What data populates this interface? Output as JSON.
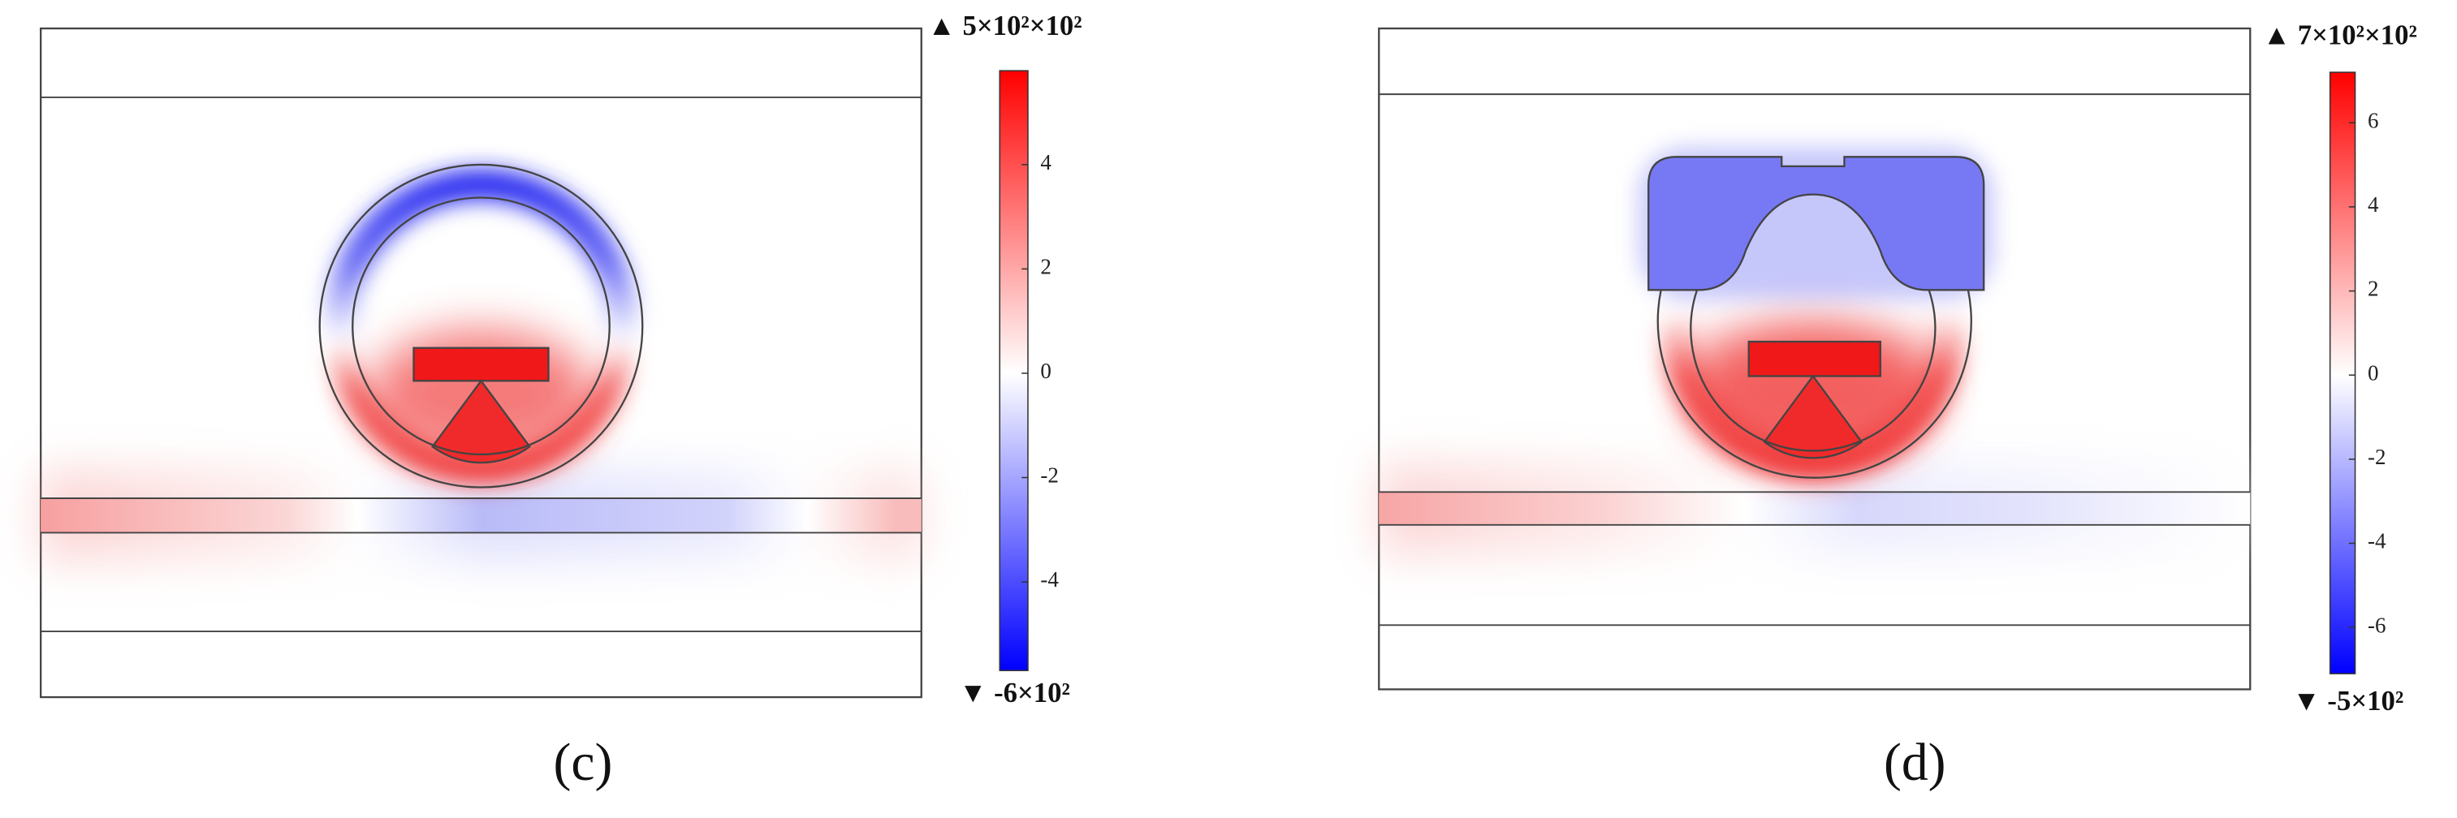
{
  "panels": [
    {
      "label": "(c)",
      "max_label": "▲ 5×10²×10²",
      "min_label": "▼ -6×10²",
      "clim": [
        -5.7,
        5.8
      ],
      "ticks": [
        4,
        2,
        0,
        -2,
        -4
      ]
    },
    {
      "label": "(d)",
      "max_label": "▲ 7×10²×10²",
      "min_label": "▼ -5×10²",
      "clim": [
        -7.1,
        7.2
      ],
      "ticks": [
        6,
        4,
        2,
        0,
        -2,
        -4,
        -6
      ]
    }
  ]
}
